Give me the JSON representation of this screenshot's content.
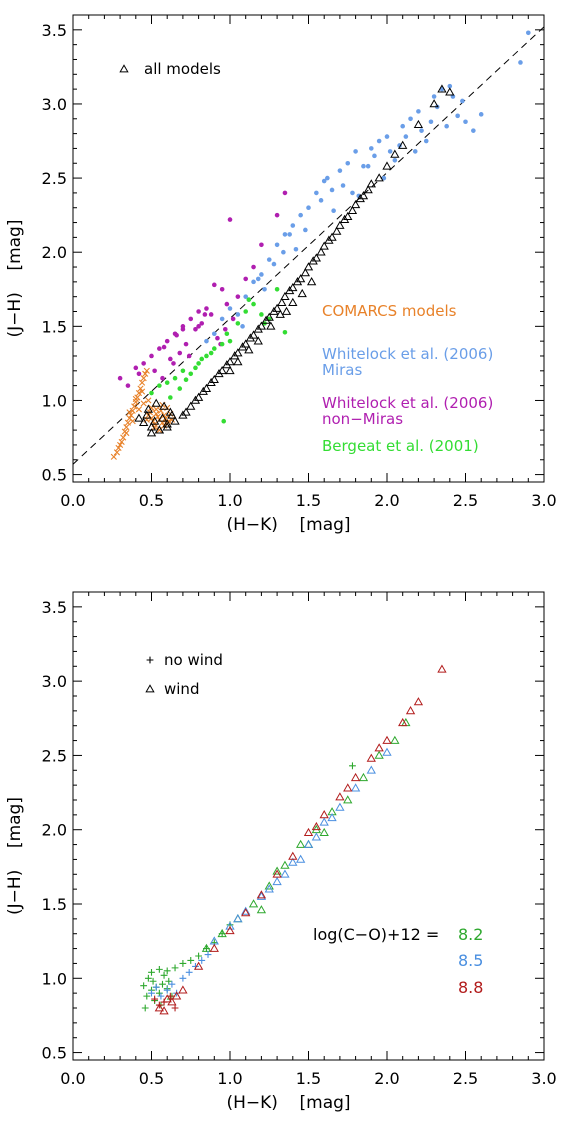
{
  "chart_data": [
    {
      "type": "scatter",
      "title": "",
      "xlabel": "(H−K)    [mag]",
      "ylabel": "(J−H)    [mag]",
      "xlim": [
        0.0,
        3.0
      ],
      "ylim": [
        0.45,
        3.6
      ],
      "xticks": [
        "0.0",
        "0.5",
        "1.0",
        "1.5",
        "2.0",
        "2.5",
        "3.0"
      ],
      "yticks": [
        "0.5",
        "1.0",
        "1.5",
        "2.0",
        "2.5",
        "3.0",
        "3.5"
      ],
      "legend": {
        "position": "top-left",
        "label": "all models",
        "marker": "triangle"
      },
      "reference_line": {
        "style": "dashed",
        "x": [
          0.0,
          3.0
        ],
        "y": [
          0.57,
          3.52
        ]
      },
      "annotations": [
        {
          "text": "COMARCS models",
          "color": "#e8822a"
        },
        {
          "text": "Whitelock et al. (2006)",
          "color": "#6a9ee8"
        },
        {
          "text": "Miras",
          "color": "#6a9ee8"
        },
        {
          "text": "Whitelock et al. (2006)",
          "color": "#b01fb0"
        },
        {
          "text": "non−Miras",
          "color": "#b01fb0"
        },
        {
          "text": "Bergeat et al. (2001)",
          "color": "#33dd33"
        }
      ],
      "series": [
        {
          "name": "COMARCS models",
          "marker": "cross",
          "color": "#e8822a",
          "x": [
            0.26,
            0.28,
            0.29,
            0.31,
            0.32,
            0.33,
            0.34,
            0.35,
            0.36,
            0.37,
            0.38,
            0.39,
            0.4,
            0.41,
            0.42,
            0.43,
            0.44,
            0.45,
            0.46,
            0.47,
            0.48,
            0.49,
            0.5,
            0.51,
            0.52,
            0.53,
            0.54,
            0.55,
            0.56,
            0.57,
            0.58,
            0.59,
            0.6,
            0.61,
            0.62,
            0.63,
            0.3,
            0.34,
            0.38,
            0.42,
            0.45,
            0.48,
            0.5,
            0.52,
            0.55,
            0.58,
            0.6,
            0.47,
            0.53,
            0.57,
            0.44,
            0.4,
            0.36
          ],
          "y": [
            0.62,
            0.65,
            0.68,
            0.72,
            0.75,
            0.79,
            0.82,
            0.85,
            0.88,
            0.9,
            0.93,
            0.96,
            0.99,
            1.02,
            1.05,
            1.08,
            1.12,
            1.15,
            1.18,
            1.2,
            0.9,
            0.92,
            0.88,
            0.86,
            0.84,
            0.91,
            0.89,
            0.87,
            0.93,
            0.85,
            0.9,
            0.88,
            0.84,
            0.86,
            0.91,
            0.87,
            0.7,
            0.78,
            0.86,
            0.94,
            0.98,
            1.0,
            0.95,
            0.82,
            0.8,
            0.83,
            0.95,
            0.87,
            0.94,
            0.97,
            1.06,
            1.01,
            0.92
          ]
        },
        {
          "name": "Whitelock et al. (2006) Miras",
          "marker": "dot",
          "color": "#6a9ee8",
          "x": [
            0.95,
            1.0,
            1.05,
            1.1,
            1.15,
            1.2,
            1.25,
            1.3,
            1.35,
            1.4,
            1.45,
            1.5,
            1.55,
            1.6,
            1.65,
            1.7,
            1.75,
            1.8,
            1.85,
            1.9,
            1.95,
            2.0,
            2.05,
            2.1,
            2.15,
            2.2,
            2.25,
            2.3,
            2.35,
            2.4,
            2.45,
            2.5,
            2.55,
            2.6,
            2.85,
            2.9,
            1.22,
            1.28,
            1.34,
            1.42,
            1.48,
            1.58,
            1.66,
            1.72,
            1.82,
            1.88,
            1.98,
            2.08,
            2.18,
            2.28,
            2.38,
            2.48,
            1.12,
            1.18,
            1.38,
            1.62,
            1.78,
            1.92,
            2.02,
            2.12,
            2.22,
            2.32,
            2.42,
            0.9,
            0.85,
            1.08
          ],
          "y": [
            1.55,
            1.62,
            1.58,
            1.7,
            1.8,
            1.85,
            1.95,
            2.05,
            2.12,
            2.18,
            2.25,
            2.3,
            2.4,
            2.48,
            2.42,
            2.55,
            2.6,
            2.68,
            2.58,
            2.7,
            2.75,
            2.78,
            2.62,
            2.85,
            2.9,
            2.95,
            2.75,
            3.05,
            3.1,
            3.12,
            2.92,
            2.88,
            2.82,
            2.93,
            3.28,
            3.48,
            1.75,
            1.92,
            2.0,
            2.02,
            2.15,
            2.35,
            2.28,
            2.45,
            2.38,
            2.58,
            2.5,
            2.72,
            2.68,
            2.88,
            2.85,
            3.02,
            1.68,
            1.82,
            2.12,
            2.5,
            2.4,
            2.65,
            2.68,
            2.78,
            2.82,
            2.98,
            3.05,
            1.45,
            1.4,
            1.5
          ]
        },
        {
          "name": "Whitelock et al. (2006) non-Miras",
          "marker": "dot",
          "color": "#b01fb0",
          "x": [
            0.3,
            0.35,
            0.4,
            0.45,
            0.5,
            0.55,
            0.6,
            0.65,
            0.7,
            0.75,
            0.8,
            0.85,
            0.9,
            0.95,
            1.0,
            0.62,
            0.68,
            0.72,
            0.78,
            0.82,
            0.88,
            0.92,
            0.98,
            1.05,
            1.1,
            1.15,
            1.2,
            1.3,
            1.35,
            0.42,
            0.52,
            0.58,
            0.66,
            0.74,
            0.84,
            0.94,
            0.97,
            1.02,
            0.57,
            0.64,
            0.7,
            0.8
          ],
          "y": [
            1.15,
            1.1,
            1.22,
            1.25,
            1.3,
            1.35,
            1.4,
            1.45,
            1.5,
            1.55,
            1.6,
            1.62,
            1.78,
            1.75,
            2.22,
            1.28,
            1.32,
            1.38,
            1.48,
            1.52,
            1.58,
            1.42,
            1.65,
            1.7,
            1.82,
            1.9,
            2.05,
            2.25,
            2.4,
            1.18,
            1.2,
            1.36,
            1.44,
            1.3,
            1.58,
            1.38,
            1.48,
            1.55,
            1.15,
            1.25,
            1.48,
            1.5
          ]
        },
        {
          "name": "Bergeat et al. (2001)",
          "marker": "dot",
          "color": "#33dd33",
          "x": [
            0.5,
            0.55,
            0.6,
            0.65,
            0.7,
            0.75,
            0.8,
            0.85,
            0.9,
            0.95,
            1.0,
            1.05,
            1.1,
            1.15,
            1.2,
            1.25,
            1.3,
            1.35,
            0.62,
            0.68,
            0.72,
            0.78,
            0.82,
            0.88,
            0.98,
            1.12,
            1.22,
            0.96
          ],
          "y": [
            1.05,
            1.1,
            1.12,
            1.15,
            1.2,
            1.18,
            1.25,
            1.3,
            1.35,
            1.38,
            1.4,
            1.52,
            1.6,
            1.65,
            1.58,
            1.55,
            1.75,
            1.46,
            1.02,
            1.08,
            1.14,
            1.22,
            1.28,
            1.32,
            1.45,
            1.68,
            1.52,
            0.86
          ]
        },
        {
          "name": "all models",
          "marker": "triangle",
          "color": "#000000",
          "x": [
            0.42,
            0.45,
            0.47,
            0.5,
            0.52,
            0.55,
            0.57,
            0.6,
            0.62,
            0.65,
            0.48,
            0.53,
            0.58,
            0.63,
            0.5,
            0.55,
            0.6,
            0.7,
            0.72,
            0.75,
            0.78,
            0.8,
            0.83,
            0.85,
            0.88,
            0.9,
            0.93,
            0.95,
            0.98,
            1.0,
            1.03,
            1.05,
            1.08,
            1.1,
            1.13,
            1.15,
            1.18,
            1.2,
            1.23,
            1.25,
            1.28,
            1.3,
            1.33,
            1.35,
            1.38,
            1.4,
            1.43,
            1.45,
            1.48,
            1.5,
            1.53,
            1.55,
            1.58,
            1.6,
            1.63,
            1.65,
            1.68,
            1.7,
            1.73,
            1.75,
            1.78,
            1.8,
            1.83,
            1.85,
            1.88,
            1.9,
            1.95,
            2.0,
            2.05,
            2.1,
            2.2,
            2.3,
            2.35,
            2.4,
            1.0,
            1.05,
            1.12,
            1.18,
            1.26,
            1.32,
            1.4,
            1.46,
            1.52,
            1.36
          ],
          "y": [
            0.88,
            0.85,
            0.9,
            0.82,
            0.86,
            0.8,
            0.88,
            0.84,
            0.92,
            0.86,
            0.94,
            0.98,
            0.96,
            0.9,
            0.78,
            0.8,
            0.82,
            0.9,
            0.92,
            0.96,
            1.0,
            1.02,
            1.06,
            1.08,
            1.12,
            1.14,
            1.18,
            1.2,
            1.24,
            1.26,
            1.3,
            1.32,
            1.36,
            1.38,
            1.42,
            1.44,
            1.48,
            1.5,
            1.54,
            1.56,
            1.6,
            1.62,
            1.66,
            1.7,
            1.74,
            1.76,
            1.8,
            1.82,
            1.86,
            1.9,
            1.94,
            1.96,
            2.0,
            2.04,
            2.08,
            2.1,
            2.14,
            2.18,
            2.22,
            2.24,
            2.28,
            2.32,
            2.36,
            2.38,
            2.42,
            2.46,
            2.5,
            2.58,
            2.66,
            2.72,
            2.86,
            3.0,
            3.1,
            3.08,
            1.2,
            1.26,
            1.34,
            1.4,
            1.5,
            1.58,
            1.66,
            1.72,
            1.8,
            1.6
          ]
        }
      ]
    },
    {
      "type": "scatter",
      "title": "",
      "xlabel": "(H−K)    [mag]",
      "ylabel": "(J−H)    [mag]",
      "xlim": [
        0.0,
        3.0
      ],
      "ylim": [
        0.45,
        3.6
      ],
      "xticks": [
        "0.0",
        "0.5",
        "1.0",
        "1.5",
        "2.0",
        "2.5",
        "3.0"
      ],
      "yticks": [
        "0.5",
        "1.0",
        "1.5",
        "2.0",
        "2.5",
        "3.0",
        "3.5"
      ],
      "legend": {
        "position": "top-left",
        "entries": [
          {
            "label": "no wind",
            "marker": "plus"
          },
          {
            "label": "wind",
            "marker": "triangle"
          }
        ]
      },
      "abundance_key": {
        "label": "log(C−O)+12 =",
        "values": [
          {
            "text": "8.2",
            "color": "#2ea82e"
          },
          {
            "text": "8.5",
            "color": "#4a8fe0"
          },
          {
            "text": "8.8",
            "color": "#b21c1c"
          }
        ]
      },
      "series": [
        {
          "name": "8.2",
          "color": "#2ea82e",
          "marker": "plus",
          "wind": false,
          "x": [
            0.45,
            0.47,
            0.5,
            0.52,
            0.55,
            0.57,
            0.6,
            0.62,
            0.46,
            0.51,
            0.56,
            0.61,
            0.48,
            0.53,
            0.58,
            0.63,
            0.5,
            0.55,
            0.6,
            0.65,
            0.7,
            0.75,
            0.8,
            0.85,
            0.9,
            0.95,
            1.0,
            1.78
          ],
          "y": [
            0.95,
            0.88,
            0.92,
            0.85,
            0.9,
            0.96,
            0.93,
            0.86,
            0.8,
            0.98,
            0.82,
            0.98,
            1.0,
            0.94,
            1.02,
            0.88,
            1.04,
            1.06,
            1.05,
            1.07,
            1.1,
            1.12,
            1.15,
            1.2,
            1.24,
            1.3,
            1.36,
            2.43
          ]
        },
        {
          "name": "8.2",
          "color": "#2ea82e",
          "marker": "triangle",
          "wind": true,
          "x": [
            0.85,
            0.95,
            1.05,
            1.15,
            1.25,
            1.35,
            1.45,
            1.55,
            1.65,
            1.75,
            1.85,
            1.95,
            2.05,
            2.12,
            1.5,
            1.6,
            1.3,
            1.2
          ],
          "y": [
            1.2,
            1.3,
            1.4,
            1.5,
            1.62,
            1.76,
            1.9,
            2.0,
            2.12,
            2.2,
            2.35,
            2.5,
            2.6,
            2.72,
            1.9,
            1.98,
            1.72,
            1.46
          ]
        },
        {
          "name": "8.5",
          "color": "#4a8fe0",
          "marker": "plus",
          "wind": false,
          "x": [
            0.5,
            0.53,
            0.56,
            0.6,
            0.63,
            0.66,
            0.7,
            0.74,
            0.78,
            0.82,
            0.86
          ],
          "y": [
            0.9,
            0.94,
            0.88,
            0.92,
            0.96,
            0.9,
            1.0,
            1.04,
            1.08,
            1.12,
            1.16
          ]
        },
        {
          "name": "8.5",
          "color": "#4a8fe0",
          "marker": "triangle",
          "wind": true,
          "x": [
            0.9,
            1.0,
            1.1,
            1.2,
            1.3,
            1.4,
            1.5,
            1.6,
            1.7,
            1.8,
            1.9,
            2.0,
            1.05,
            1.25,
            1.45,
            1.65,
            1.35,
            1.55
          ],
          "y": [
            1.25,
            1.35,
            1.45,
            1.55,
            1.65,
            1.78,
            1.9,
            2.05,
            2.15,
            2.28,
            2.4,
            2.52,
            1.4,
            1.6,
            1.8,
            2.08,
            1.7,
            1.95
          ]
        },
        {
          "name": "8.8",
          "color": "#b21c1c",
          "marker": "plus",
          "wind": false,
          "x": [
            0.52,
            0.55,
            0.58,
            0.62,
            0.65
          ],
          "y": [
            0.86,
            0.82,
            0.84,
            0.88,
            0.8
          ]
        },
        {
          "name": "8.8",
          "color": "#b21c1c",
          "marker": "triangle",
          "wind": true,
          "x": [
            0.55,
            0.58,
            0.6,
            0.63,
            0.66,
            0.7,
            0.8,
            0.9,
            1.0,
            1.1,
            1.2,
            1.3,
            1.4,
            1.5,
            1.6,
            1.7,
            1.8,
            1.9,
            2.0,
            2.1,
            2.15,
            2.2,
            2.35,
            1.55,
            1.75,
            1.95
          ],
          "y": [
            0.8,
            0.78,
            0.86,
            0.84,
            0.88,
            0.92,
            1.08,
            1.2,
            1.32,
            1.44,
            1.56,
            1.7,
            1.82,
            1.98,
            2.1,
            2.22,
            2.35,
            2.48,
            2.6,
            2.72,
            2.8,
            2.86,
            3.08,
            2.02,
            2.28,
            2.55
          ]
        }
      ]
    }
  ]
}
